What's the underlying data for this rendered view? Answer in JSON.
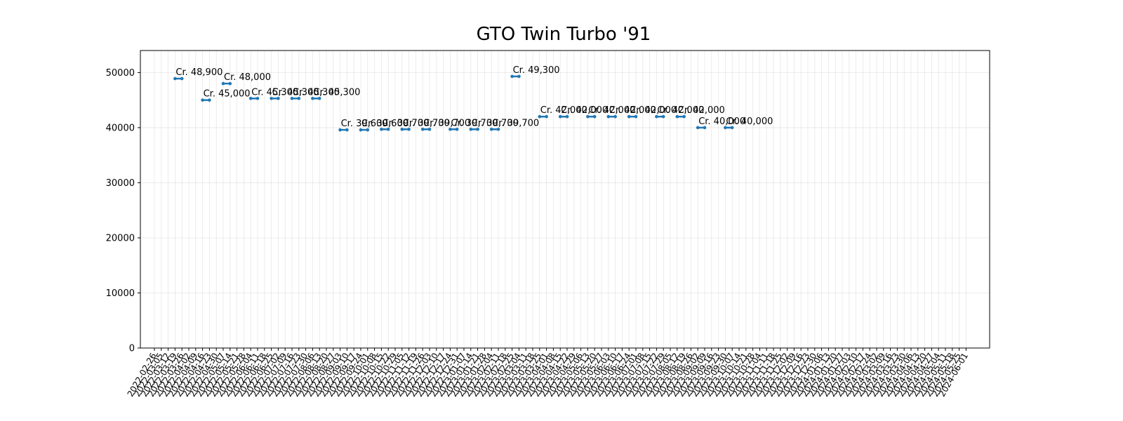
{
  "chart_data": {
    "type": "line",
    "title": "GTO Twin Turbo '91",
    "xlabel": "",
    "ylabel": "",
    "ylim": [
      0,
      54000
    ],
    "yticks": [
      0,
      10000,
      20000,
      30000,
      40000,
      50000
    ],
    "grid": true,
    "x_ticks": [
      "2022-02-26",
      "2022-03-05",
      "2022-03-12",
      "2022-03-19",
      "2022-03-26",
      "2022-04-02",
      "2022-04-09",
      "2022-04-16",
      "2022-04-23",
      "2022-04-30",
      "2022-05-07",
      "2022-05-14",
      "2022-05-21",
      "2022-05-28",
      "2022-06-04",
      "2022-06-11",
      "2022-06-18",
      "2022-06-25",
      "2022-07-02",
      "2022-07-09",
      "2022-07-16",
      "2022-07-23",
      "2022-07-30",
      "2022-08-06",
      "2022-08-13",
      "2022-08-20",
      "2022-08-27",
      "2022-09-03",
      "2022-09-10",
      "2022-09-17",
      "2022-09-24",
      "2022-10-01",
      "2022-10-08",
      "2022-10-15",
      "2022-10-22",
      "2022-10-29",
      "2022-11-05",
      "2022-11-12",
      "2022-11-19",
      "2022-11-26",
      "2022-12-03",
      "2022-12-10",
      "2022-12-17",
      "2022-12-24",
      "2022-12-31",
      "2023-01-07",
      "2023-01-14",
      "2023-01-21",
      "2023-01-28",
      "2023-02-04",
      "2023-02-11",
      "2023-02-18",
      "2023-02-25",
      "2023-03-04",
      "2023-03-11",
      "2023-03-18",
      "2023-03-25",
      "2023-04-01",
      "2023-04-08",
      "2023-04-15",
      "2023-04-22",
      "2023-04-29",
      "2023-05-06",
      "2023-05-13",
      "2023-05-20",
      "2023-05-27",
      "2023-06-03",
      "2023-06-10",
      "2023-06-17",
      "2023-06-24",
      "2023-07-01",
      "2023-07-08",
      "2023-07-15",
      "2023-07-22",
      "2023-07-29",
      "2023-08-05",
      "2023-08-12",
      "2023-08-19",
      "2023-08-26",
      "2023-09-02",
      "2023-09-09",
      "2023-09-16",
      "2023-09-23",
      "2023-09-30",
      "2023-10-07",
      "2023-10-14",
      "2023-10-21",
      "2023-10-28",
      "2023-11-04",
      "2023-11-11",
      "2023-11-18",
      "2023-11-25",
      "2023-12-02",
      "2023-12-09",
      "2023-12-16",
      "2023-12-23",
      "2023-12-30",
      "2024-01-06",
      "2024-01-13",
      "2024-01-20",
      "2024-01-27",
      "2024-02-03",
      "2024-02-10",
      "2024-02-17",
      "2024-02-24",
      "2024-03-02",
      "2024-03-09",
      "2024-03-16",
      "2024-03-23",
      "2024-03-30",
      "2024-04-06",
      "2024-04-13",
      "2024-04-20",
      "2024-04-27",
      "2024-05-04",
      "2024-05-11",
      "2024-05-18",
      "2024-05-25",
      "2024-06-01"
    ],
    "series_color": "#1f77b4",
    "segments": [
      {
        "start": "2022-03-19",
        "end": "2022-03-26",
        "value": 48900,
        "label": "Cr. 48,900"
      },
      {
        "start": "2022-04-16",
        "end": "2022-04-23",
        "value": 45000,
        "label": "Cr. 45,000"
      },
      {
        "start": "2022-05-07",
        "end": "2022-05-14",
        "value": 48000,
        "label": "Cr. 48,000"
      },
      {
        "start": "2022-06-04",
        "end": "2022-06-11",
        "value": 45300,
        "label": "Cr. 45,300"
      },
      {
        "start": "2022-06-25",
        "end": "2022-07-02",
        "value": 45300,
        "label": "Cr. 45,300"
      },
      {
        "start": "2022-07-16",
        "end": "2022-07-23",
        "value": 45300,
        "label": "Cr. 45,300"
      },
      {
        "start": "2022-08-06",
        "end": "2022-08-13",
        "value": 45300,
        "label": "Cr. 45,300"
      },
      {
        "start": "2022-09-03",
        "end": "2022-09-10",
        "value": 39600,
        "label": "Cr. 39,600"
      },
      {
        "start": "2022-09-24",
        "end": "2022-10-01",
        "value": 39600,
        "label": "Cr. 39,600"
      },
      {
        "start": "2022-10-15",
        "end": "2022-10-22",
        "value": 39700,
        "label": "Cr. 39,700"
      },
      {
        "start": "2022-11-05",
        "end": "2022-11-12",
        "value": 39700,
        "label": "Cr. 39,700"
      },
      {
        "start": "2022-11-26",
        "end": "2022-12-03",
        "value": 39700,
        "label": "Cr. 39,700"
      },
      {
        "start": "2022-12-24",
        "end": "2022-12-31",
        "value": 39700,
        "label": "Cr. 39,700"
      },
      {
        "start": "2023-01-14",
        "end": "2023-01-21",
        "value": 39700,
        "label": "Cr. 39,700"
      },
      {
        "start": "2023-02-04",
        "end": "2023-02-11",
        "value": 39700,
        "label": "Cr. 39,700"
      },
      {
        "start": "2023-02-25",
        "end": "2023-03-04",
        "value": 49300,
        "label": "Cr. 49,300"
      },
      {
        "start": "2023-03-25",
        "end": "2023-04-01",
        "value": 42000,
        "label": "Cr. 42,000"
      },
      {
        "start": "2023-04-15",
        "end": "2023-04-22",
        "value": 42000,
        "label": "Cr. 42,000"
      },
      {
        "start": "2023-05-13",
        "end": "2023-05-20",
        "value": 42000,
        "label": "Cr. 42,000"
      },
      {
        "start": "2023-06-03",
        "end": "2023-06-10",
        "value": 42000,
        "label": "Cr. 42,000"
      },
      {
        "start": "2023-06-24",
        "end": "2023-07-01",
        "value": 42000,
        "label": "Cr. 42,000"
      },
      {
        "start": "2023-07-22",
        "end": "2023-07-29",
        "value": 42000,
        "label": "Cr. 42,000"
      },
      {
        "start": "2023-08-12",
        "end": "2023-08-19",
        "value": 42000,
        "label": "Cr. 42,000"
      },
      {
        "start": "2023-09-02",
        "end": "2023-09-09",
        "value": 40000,
        "label": "Cr. 40,000"
      },
      {
        "start": "2023-09-30",
        "end": "2023-10-07",
        "value": 40000,
        "label": "Cr. 40,000"
      }
    ]
  }
}
